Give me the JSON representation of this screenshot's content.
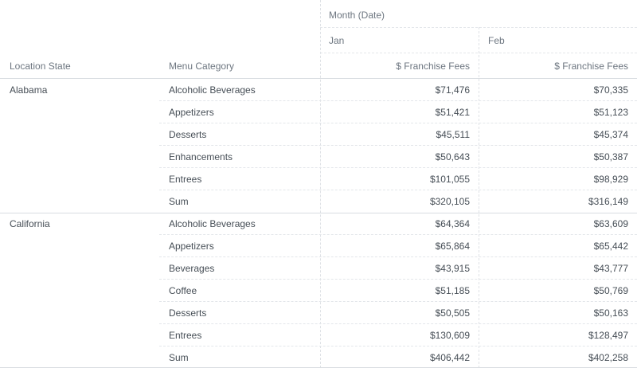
{
  "table": {
    "row_headers": [
      "Location State",
      "Menu Category"
    ],
    "column_group_label": "Month (Date)",
    "months": [
      "Jan",
      "Feb"
    ],
    "measure_label": "$ Franchise Fees",
    "groups": [
      {
        "state": "Alabama",
        "rows": [
          {
            "category": "Alcoholic Beverages",
            "jan": "$71,476",
            "feb": "$70,335"
          },
          {
            "category": "Appetizers",
            "jan": "$51,421",
            "feb": "$51,123"
          },
          {
            "category": "Desserts",
            "jan": "$45,511",
            "feb": "$45,374"
          },
          {
            "category": "Enhancements",
            "jan": "$50,643",
            "feb": "$50,387"
          },
          {
            "category": "Entrees",
            "jan": "$101,055",
            "feb": "$98,929"
          },
          {
            "category": "Sum",
            "jan": "$320,105",
            "feb": "$316,149"
          }
        ]
      },
      {
        "state": "California",
        "rows": [
          {
            "category": "Alcoholic Beverages",
            "jan": "$64,364",
            "feb": "$63,609"
          },
          {
            "category": "Appetizers",
            "jan": "$65,864",
            "feb": "$65,442"
          },
          {
            "category": "Beverages",
            "jan": "$43,915",
            "feb": "$43,777"
          },
          {
            "category": "Coffee",
            "jan": "$51,185",
            "feb": "$50,769"
          },
          {
            "category": "Desserts",
            "jan": "$50,505",
            "feb": "$50,163"
          },
          {
            "category": "Entrees",
            "jan": "$130,609",
            "feb": "$128,497"
          },
          {
            "category": "Sum",
            "jan": "$406,442",
            "feb": "$402,258"
          }
        ]
      }
    ]
  }
}
